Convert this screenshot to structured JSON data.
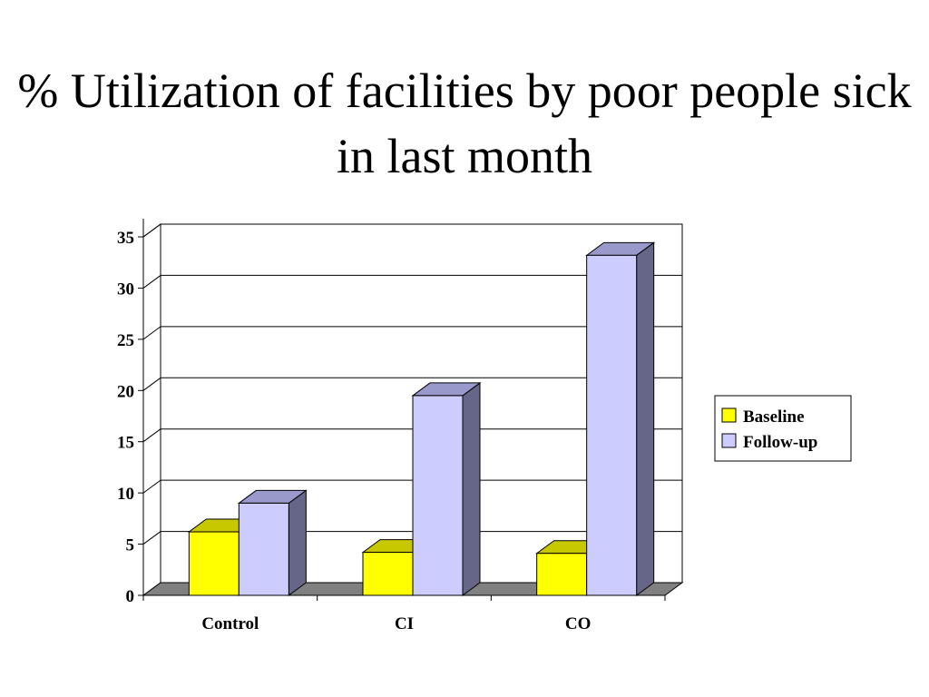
{
  "slide": {
    "title": "% Utilization of facilities by poor people sick in last month"
  },
  "chart_data": {
    "type": "bar",
    "title": "",
    "xlabel": "",
    "ylabel": "",
    "categories": [
      "Control",
      "CI",
      "CO"
    ],
    "series": [
      {
        "name": "Baseline",
        "values": [
          6.2,
          4.2,
          4.1
        ],
        "color": "#ffff00",
        "side_color": "#b5b500",
        "top_color": "#c8c800"
      },
      {
        "name": "Follow-up",
        "values": [
          9.0,
          19.5,
          33.2
        ],
        "color": "#ccccff",
        "side_color": "#666688",
        "top_color": "#9999cc"
      }
    ],
    "ylim": [
      0,
      35
    ],
    "yticks": [
      "0",
      "5",
      "10",
      "15",
      "20",
      "25",
      "30",
      "35"
    ],
    "grid": true,
    "legend_position": "right",
    "style": "3d-clustered-column"
  }
}
